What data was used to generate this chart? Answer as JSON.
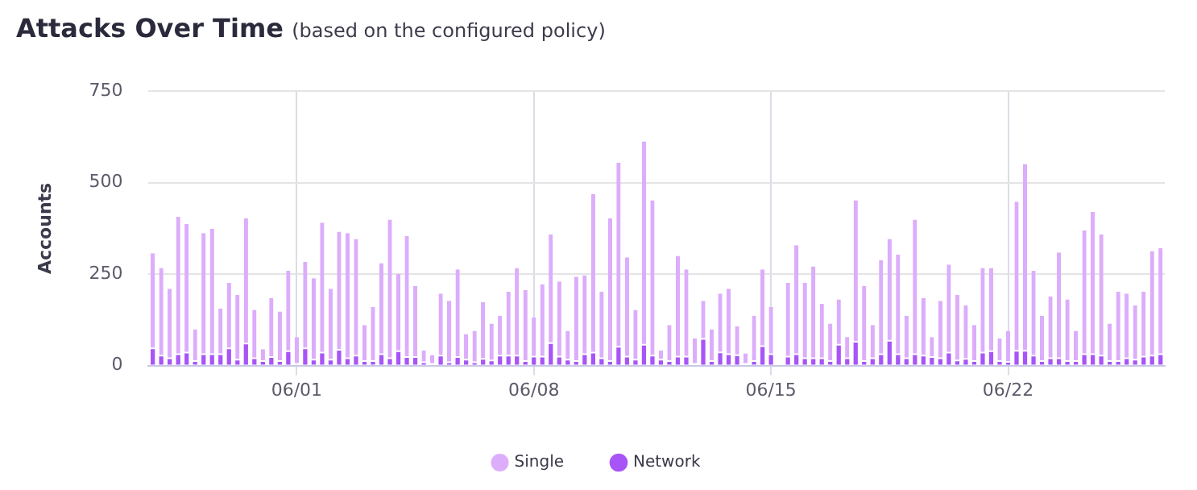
{
  "chart_data": {
    "type": "bar",
    "title": "Attacks Over Time",
    "subtitle": "(based on the configured policy)",
    "ylabel": "Accounts",
    "categories": [
      null,
      null,
      null,
      null,
      null,
      null,
      null,
      null,
      null,
      null,
      null,
      null,
      null,
      null,
      null,
      null,
      null,
      "06/01",
      null,
      null,
      null,
      null,
      null,
      null,
      null,
      null,
      null,
      null,
      null,
      null,
      null,
      null,
      null,
      null,
      null,
      null,
      null,
      null,
      null,
      null,
      null,
      null,
      null,
      null,
      null,
      "06/08",
      null,
      null,
      null,
      null,
      null,
      null,
      null,
      null,
      null,
      null,
      null,
      null,
      null,
      null,
      null,
      null,
      null,
      null,
      null,
      null,
      null,
      null,
      null,
      null,
      null,
      null,
      null,
      "06/15",
      null,
      null,
      null,
      null,
      null,
      null,
      null,
      null,
      null,
      null,
      null,
      null,
      null,
      null,
      null,
      null,
      null,
      null,
      null,
      null,
      null,
      null,
      null,
      null,
      null,
      null,
      null,
      "06/22",
      null,
      null,
      null,
      null,
      null,
      null,
      null,
      null,
      null,
      null,
      null,
      null,
      null,
      null,
      null,
      null,
      null,
      null
    ],
    "stacked": true,
    "series": [
      {
        "name": "Network",
        "color": "#a855f7",
        "values": [
          45,
          25,
          18,
          29,
          33,
          10,
          29,
          29,
          29,
          45,
          14,
          58,
          18,
          10,
          21,
          10,
          37,
          0,
          45,
          14,
          33,
          14,
          41,
          18,
          25,
          10,
          10,
          29,
          18,
          37,
          21,
          21,
          7,
          0,
          25,
          7,
          21,
          14,
          7,
          16,
          12,
          25,
          25,
          25,
          10,
          22,
          22,
          59,
          22,
          14,
          10,
          29,
          33,
          18,
          10,
          49,
          22,
          14,
          55,
          25,
          14,
          10,
          22,
          22,
          0,
          71,
          10,
          34,
          29,
          26,
          0,
          10,
          51,
          29,
          0,
          22,
          29,
          18,
          18,
          18,
          10,
          55,
          18,
          63,
          10,
          18,
          29,
          66,
          29,
          18,
          29,
          25,
          21,
          18,
          33,
          12,
          16,
          10,
          33,
          37,
          10,
          8,
          38,
          38,
          25,
          10,
          18,
          18,
          10,
          10,
          29,
          29,
          25,
          10,
          10,
          18,
          14,
          22,
          25,
          29
        ]
      },
      {
        "name": "Single",
        "color": "#dcadfb",
        "values": [
          262,
          242,
          192,
          378,
          354,
          89,
          333,
          345,
          127,
          181,
          179,
          345,
          134,
          35,
          164,
          138,
          222,
          78,
          239,
          225,
          358,
          196,
          325,
          344,
          321,
          101,
          150,
          251,
          381,
          214,
          333,
          197,
          34,
          29,
          172,
          170,
          242,
          72,
          88,
          157,
          103,
          111,
          177,
          242,
          196,
          110,
          200,
          299,
          208,
          81,
          233,
          218,
          436,
          184,
          393,
          506,
          274,
          138,
          558,
          427,
          27,
          101,
          278,
          241,
          74,
          106,
          89,
          163,
          181,
          81,
          33,
          126,
          212,
          131,
          0,
          204,
          300,
          208,
          253,
          151,
          105,
          126,
          60,
          389,
          208,
          93,
          259,
          280,
          275,
          118,
          370,
          160,
          57,
          159,
          243,
          181,
          149,
          101,
          234,
          230,
          64,
          87,
          410,
          513,
          234,
          126,
          171,
          291,
          171,
          85,
          341,
          391,
          333,
          105,
          192,
          179,
          151,
          180,
          288,
          292
        ]
      }
    ],
    "ylim": [
      0,
      750
    ],
    "yticks": [
      0,
      250,
      500,
      750
    ],
    "grid": true,
    "legend": "bottom"
  }
}
